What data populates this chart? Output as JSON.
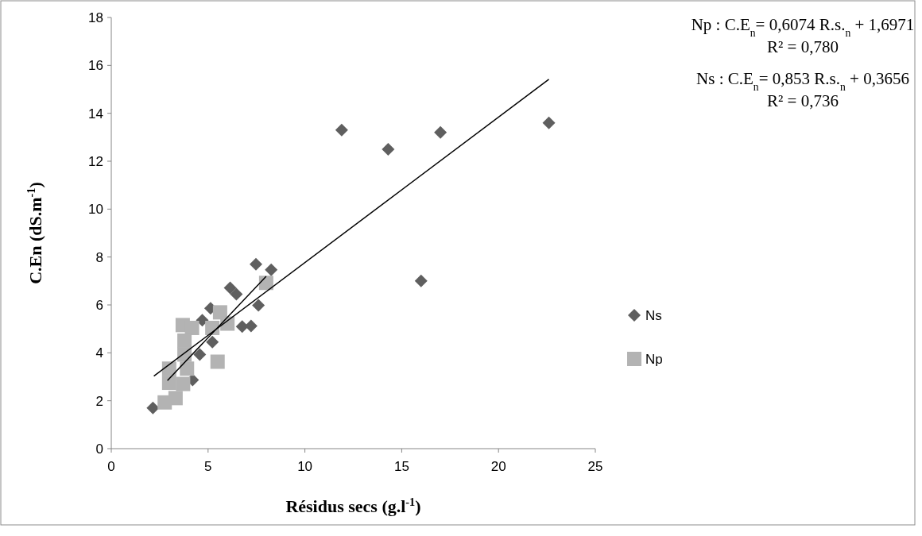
{
  "chart_data": {
    "type": "scatter",
    "xlabel": "Résidus secs (g.l$^{-1}$)",
    "ylabel": "C.En (dS.m$^{-1}$)",
    "xlim": [
      0,
      25
    ],
    "xticks": [
      0,
      5,
      10,
      15,
      20,
      25
    ],
    "ylim": [
      0,
      18
    ],
    "yticks": [
      0,
      2,
      4,
      6,
      8,
      10,
      12,
      14,
      16,
      18
    ],
    "grid": false,
    "legend": "right",
    "annotations": [
      "Np : C.E$_{n}$= 0,6074 R.s.$_{n}$ + 1,6971",
      "R² = 0,780",
      "Ns : C.E$_{n}$= 0,853 R.s.$_{n}$ + 0,3656",
      "R² = 0,736"
    ],
    "series": [
      {
        "name": "Ns",
        "color": "#5f5f5f",
        "marker": "diamond",
        "x": [
          2.15,
          7.47,
          8.26,
          6.14,
          6.46,
          5.13,
          7.6,
          6.76,
          7.22,
          4.7,
          5.22,
          4.57,
          4.2,
          11.9,
          14.3,
          17.0,
          22.6,
          16.0
        ],
        "values": [
          1.7,
          7.7,
          7.47,
          6.71,
          6.45,
          5.86,
          5.98,
          5.1,
          5.12,
          5.36,
          4.45,
          3.93,
          2.87,
          13.3,
          12.5,
          13.2,
          13.6,
          7.0
        ]
      },
      {
        "name": "Np",
        "color": "#b3b3b3",
        "marker": "square",
        "x": [
          8.0,
          3.69,
          5.62,
          5.49,
          4.17,
          3.78,
          3.78,
          3.91,
          2.99,
          2.99,
          3.71,
          3.32,
          2.76,
          5.22,
          6.0
        ],
        "values": [
          6.92,
          5.16,
          5.69,
          3.63,
          5.04,
          4.51,
          3.93,
          3.34,
          3.34,
          2.75,
          2.7,
          2.11,
          1.93,
          5.04,
          5.22
        ]
      },
      {
        "type": "line",
        "color": "#000000",
        "x": [
          2.2,
          22.6
        ],
        "values": [
          3.03,
          15.42
        ]
      },
      {
        "type": "line",
        "color": "#000000",
        "x": [
          2.9,
          8.0
        ],
        "values": [
          2.84,
          7.19
        ]
      }
    ]
  }
}
